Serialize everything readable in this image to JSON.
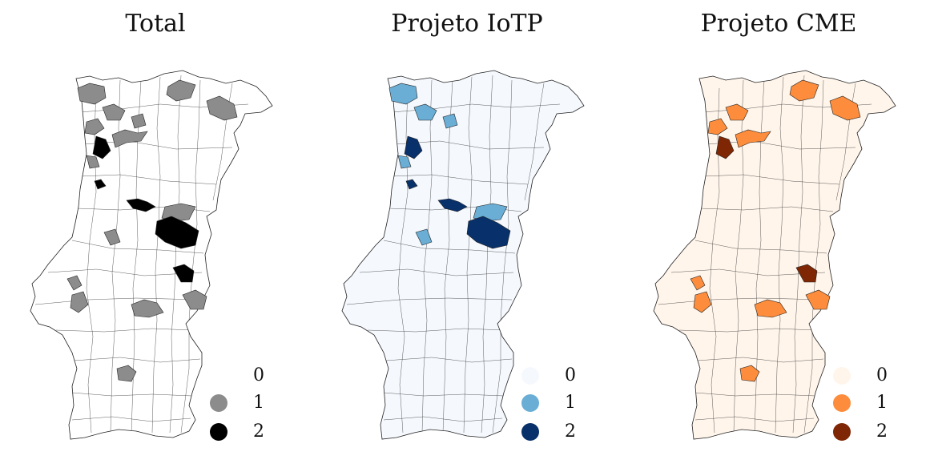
{
  "panels": [
    {
      "title": "Total",
      "colors": {
        "0": "#ffffff",
        "1": "#8c8c8c",
        "2": "#000000"
      },
      "legend": [
        {
          "label": "0",
          "color": "#ffffff"
        },
        {
          "label": "1",
          "color": "#8c8c8c"
        },
        {
          "label": "2",
          "color": "#000000"
        }
      ]
    },
    {
      "title": "Projeto IoTP",
      "colors": {
        "0": "#f5f9fe",
        "1": "#6aaed6",
        "2": "#08306b"
      },
      "legend": [
        {
          "label": "0",
          "color": "#f5f9fe"
        },
        {
          "label": "1",
          "color": "#6aaed6"
        },
        {
          "label": "2",
          "color": "#08306b"
        }
      ]
    },
    {
      "title": "Projeto CME",
      "colors": {
        "0": "#fff5eb",
        "1": "#fd8d3c",
        "2": "#7f2704"
      },
      "legend": [
        {
          "label": "0",
          "color": "#fff5eb"
        },
        {
          "label": "1",
          "color": "#fd8d3c"
        },
        {
          "label": "2",
          "color": "#7f2704"
        }
      ]
    }
  ],
  "map": {
    "theme": "Portuguese municipalities choropleth",
    "region_names_shown": false
  }
}
